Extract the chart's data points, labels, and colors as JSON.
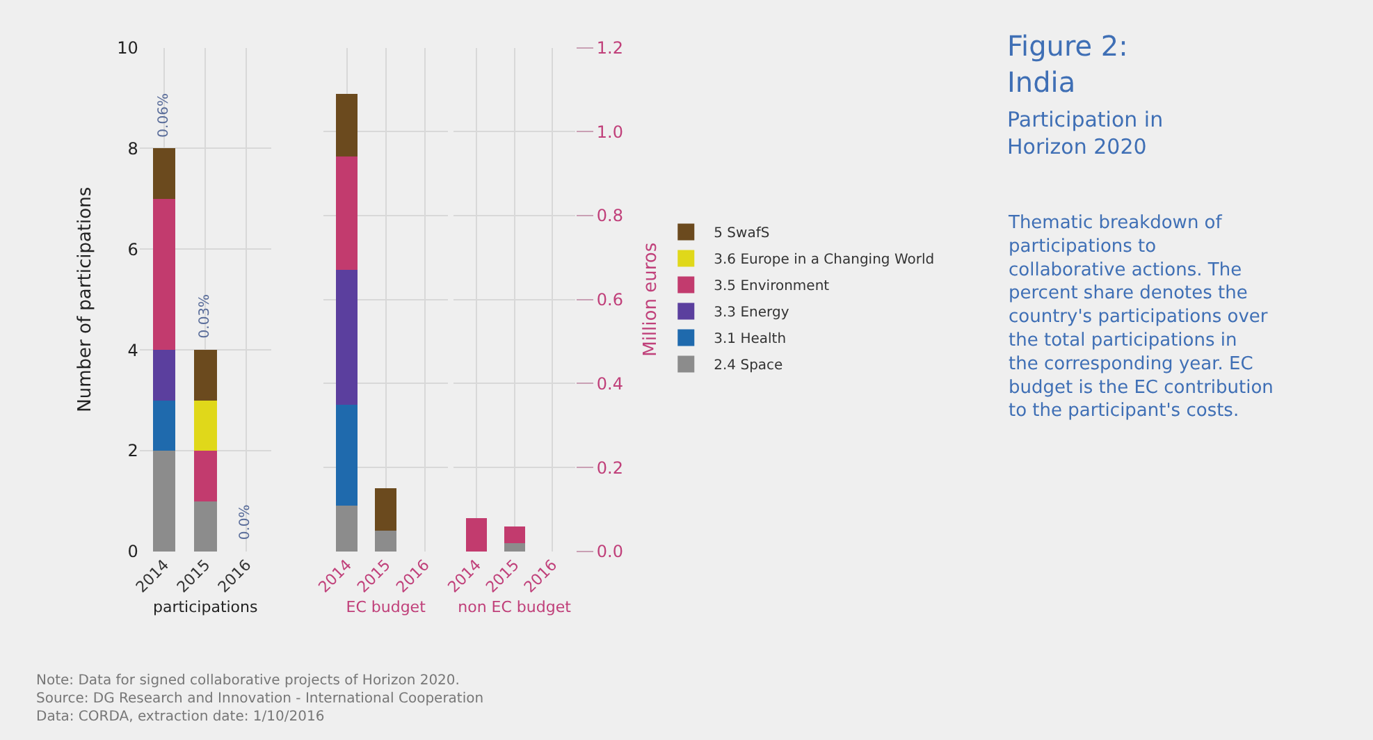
{
  "chart_data": [
    {
      "type": "bar",
      "stacked": true,
      "categories": [
        "2014",
        "2015",
        "2016"
      ],
      "series": [
        {
          "name": "2.4 Space",
          "color": "#8c8c8c",
          "values": [
            2,
            1,
            0
          ]
        },
        {
          "name": "3.1 Health",
          "color": "#1f6aad",
          "values": [
            1,
            0,
            0
          ]
        },
        {
          "name": "3.3 Energy",
          "color": "#5b3f9e",
          "values": [
            1,
            0,
            0
          ]
        },
        {
          "name": "3.5 Environment",
          "color": "#c23b6e",
          "values": [
            3,
            1,
            0
          ]
        },
        {
          "name": "3.6 Europe in a Changing World",
          "color": "#e0d81a",
          "values": [
            0,
            1,
            0
          ]
        },
        {
          "name": "5 SwafS",
          "color": "#6b4a1e",
          "values": [
            1,
            1,
            0
          ]
        }
      ],
      "ylim": [
        0,
        10
      ],
      "yticks": [
        0,
        2,
        4,
        6,
        8,
        10
      ],
      "grid": true,
      "legend": "right",
      "xlabel": "participations",
      "ylabel": "Number of participations",
      "annotations": [
        {
          "text": "0.06%",
          "x": "2014",
          "y": 8
        },
        {
          "text": "0.03%",
          "x": "2015",
          "y": 4
        },
        {
          "text": "0.0%",
          "x": "2016",
          "y": 0
        },
        "Note: Data for signed collaborative projects of Horizon 2020.",
        "Source: DG Research and Innovation - International Cooperation",
        "Data: CORDA, extraction date: 1/10/2016"
      ]
    },
    {
      "type": "bar",
      "stacked": true,
      "categories": [
        "2014",
        "2015",
        "2016"
      ],
      "series": [
        {
          "color": "#8c8c8c",
          "values": [
            0.11,
            0.05,
            0
          ]
        },
        {
          "color": "#1f6aad",
          "values": [
            0.24,
            0,
            0
          ]
        },
        {
          "color": "#5b3f9e",
          "values": [
            0.32,
            0,
            0
          ]
        },
        {
          "color": "#c23b6e",
          "values": [
            0.27,
            0,
            0
          ]
        },
        {
          "color": "#e0d81a",
          "values": [
            0,
            0,
            0
          ]
        },
        {
          "color": "#6b4a1e",
          "values": [
            0.15,
            0.1,
            0
          ]
        }
      ],
      "ylim": [
        0,
        1.2
      ],
      "yticks": [
        0,
        0.2,
        0.4,
        0.6,
        0.8,
        1.0,
        1.2
      ],
      "grid": true,
      "tick_labels": "x",
      "xlabel": "EC budget"
    },
    {
      "type": "bar",
      "stacked": true,
      "categories": [
        "2014",
        "2015",
        "2016"
      ],
      "series": [
        {
          "color": "#8c8c8c",
          "values": [
            0,
            0.02,
            0
          ]
        },
        {
          "color": "#1f6aad",
          "values": [
            0,
            0,
            0
          ]
        },
        {
          "color": "#5b3f9e",
          "values": [
            0,
            0,
            0
          ]
        },
        {
          "color": "#c23b6e",
          "values": [
            0.08,
            0.04,
            0
          ]
        },
        {
          "color": "#e0d81a",
          "values": [
            0,
            0,
            0
          ]
        },
        {
          "color": "#6b4a1e",
          "values": [
            0,
            0,
            0
          ]
        }
      ],
      "ylim": [
        0,
        1.2
      ],
      "yticks": [
        {
          "value": 0,
          "label": "0.0"
        },
        0.2,
        0.4,
        0.6,
        0.8,
        {
          "value": 1.0,
          "label": "1.0"
        },
        1.2
      ],
      "grid": true,
      "xlabel": "non EC budget",
      "ylabel": "Million euros",
      "annotations": [
        "Figure 2: India",
        "Participation in Horizon 2020",
        "Thematic breakdown of participations to collaborative actions. The percent share denotes the country's participations over the total participations in the corresponding year. EC budget is the EC contribution to the participant's costs."
      ]
    }
  ]
}
